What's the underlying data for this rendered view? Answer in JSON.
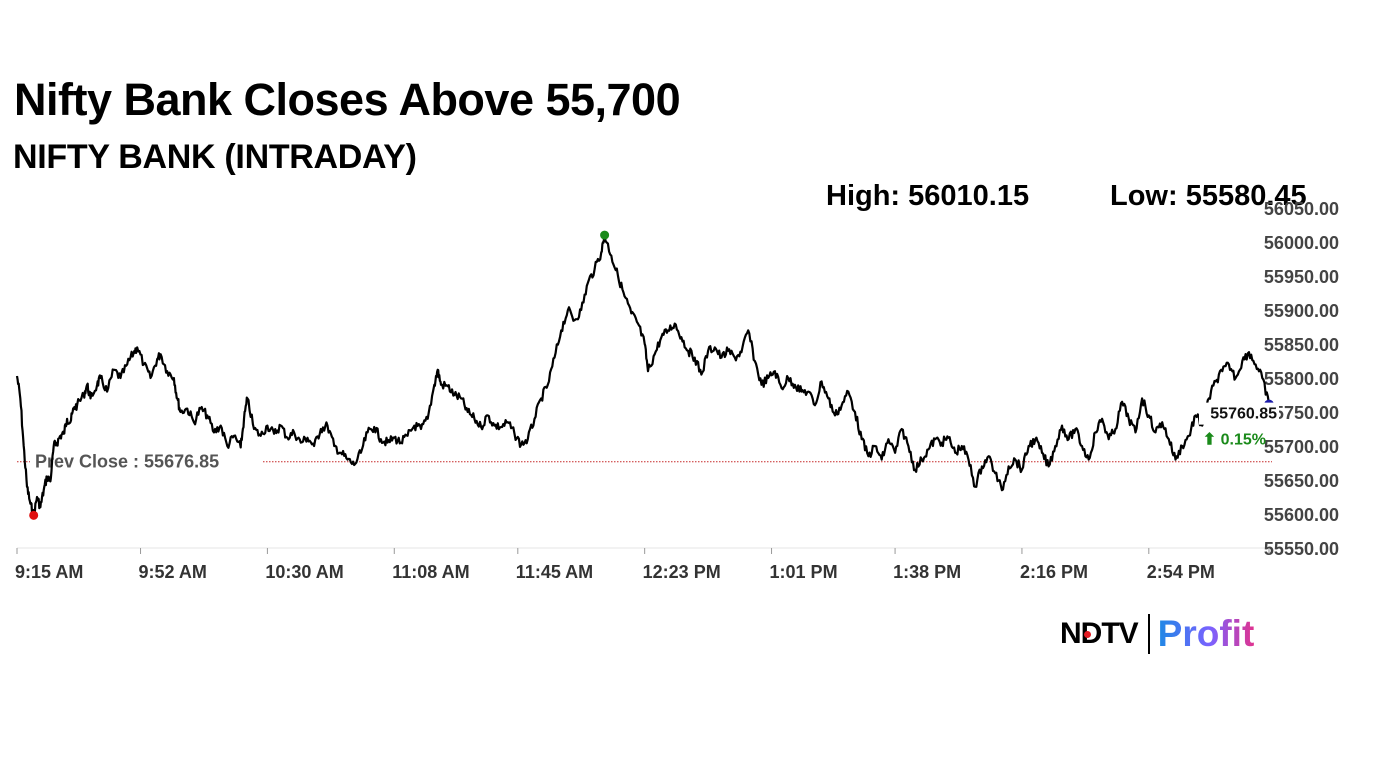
{
  "header": {
    "headline": "Nifty Bank Closes Above 55,700",
    "subtitle": "NIFTY BANK (INTRADAY)",
    "high_label": "High: 56010.15",
    "low_label": "Low: 55580.45"
  },
  "brand": {
    "ndtv": "NDTV",
    "profit": "Profit"
  },
  "chart_data": {
    "type": "line",
    "title": "NIFTY BANK (INTRADAY)",
    "xlabel": "",
    "ylabel": "",
    "x_tick_labels": [
      "9:15 AM",
      "9:52 AM",
      "10:30 AM",
      "11:08 AM",
      "11:45 AM",
      "12:23 PM",
      "1:01 PM",
      "1:38 PM",
      "2:16 PM",
      "2:54 PM"
    ],
    "y_tick_labels": [
      "56050.00",
      "56000.00",
      "55950.00",
      "55900.00",
      "55850.00",
      "55800.00",
      "55750.00",
      "55700.00",
      "55650.00",
      "55600.00",
      "55550.00"
    ],
    "ylim": [
      55550,
      56050
    ],
    "time_range": [
      "9:15 AM",
      "3:30 PM"
    ],
    "grid": false,
    "series": [
      {
        "name": "",
        "points": [
          [
            "9:15",
            55803
          ],
          [
            "9:16",
            55770
          ],
          [
            "9:17",
            55700
          ],
          [
            "9:18",
            55640
          ],
          [
            "9:19",
            55615
          ],
          [
            "9:20",
            55598
          ],
          [
            "9:21",
            55625
          ],
          [
            "9:22",
            55610
          ],
          [
            "9:23",
            55635
          ],
          [
            "9:24",
            55655
          ],
          [
            "9:25",
            55648
          ],
          [
            "9:26",
            55700
          ],
          [
            "9:27",
            55705
          ],
          [
            "9:28",
            55715
          ],
          [
            "9:29",
            55718
          ],
          [
            "9:30",
            55740
          ],
          [
            "9:31",
            55735
          ],
          [
            "9:32",
            55755
          ],
          [
            "9:33",
            55760
          ],
          [
            "9:35",
            55775
          ],
          [
            "9:36",
            55790
          ],
          [
            "9:37",
            55770
          ],
          [
            "9:39",
            55790
          ],
          [
            "9:40",
            55800
          ],
          [
            "9:42",
            55780
          ],
          [
            "9:44",
            55812
          ],
          [
            "9:46",
            55800
          ],
          [
            "9:48",
            55820
          ],
          [
            "9:50",
            55838
          ],
          [
            "9:51",
            55845
          ],
          [
            "9:53",
            55820
          ],
          [
            "9:55",
            55800
          ],
          [
            "9:57",
            55828
          ],
          [
            "9:58",
            55835
          ],
          [
            "10:00",
            55810
          ],
          [
            "10:02",
            55800
          ],
          [
            "10:03",
            55770
          ],
          [
            "10:04",
            55750
          ],
          [
            "10:06",
            55755
          ],
          [
            "10:08",
            55735
          ],
          [
            "10:10",
            55755
          ],
          [
            "10:12",
            55745
          ],
          [
            "10:14",
            55720
          ],
          [
            "10:16",
            55730
          ],
          [
            "10:18",
            55700
          ],
          [
            "10:20",
            55715
          ],
          [
            "10:22",
            55698
          ],
          [
            "10:23",
            55740
          ],
          [
            "10:24",
            55770
          ],
          [
            "10:26",
            55725
          ],
          [
            "10:28",
            55715
          ],
          [
            "10:30",
            55730
          ],
          [
            "10:32",
            55718
          ],
          [
            "10:34",
            55730
          ],
          [
            "10:36",
            55712
          ],
          [
            "10:38",
            55720
          ],
          [
            "10:40",
            55705
          ],
          [
            "10:42",
            55712
          ],
          [
            "10:44",
            55700
          ],
          [
            "10:46",
            55725
          ],
          [
            "10:48",
            55730
          ],
          [
            "10:50",
            55700
          ],
          [
            "10:52",
            55690
          ],
          [
            "10:54",
            55680
          ],
          [
            "10:56",
            55672
          ],
          [
            "10:58",
            55690
          ],
          [
            "11:00",
            55720
          ],
          [
            "11:02",
            55728
          ],
          [
            "11:04",
            55710
          ],
          [
            "11:06",
            55705
          ],
          [
            "11:08",
            55712
          ],
          [
            "11:10",
            55705
          ],
          [
            "11:12",
            55715
          ],
          [
            "11:14",
            55730
          ],
          [
            "11:16",
            55725
          ],
          [
            "11:18",
            55740
          ],
          [
            "11:20",
            55790
          ],
          [
            "11:21",
            55812
          ],
          [
            "11:22",
            55790
          ],
          [
            "11:24",
            55788
          ],
          [
            "11:26",
            55775
          ],
          [
            "11:28",
            55770
          ],
          [
            "11:30",
            55750
          ],
          [
            "11:32",
            55740
          ],
          [
            "11:34",
            55728
          ],
          [
            "11:36",
            55745
          ],
          [
            "11:38",
            55730
          ],
          [
            "11:40",
            55728
          ],
          [
            "11:42",
            55735
          ],
          [
            "11:44",
            55718
          ],
          [
            "11:46",
            55702
          ],
          [
            "11:48",
            55710
          ],
          [
            "11:50",
            55740
          ],
          [
            "11:52",
            55770
          ],
          [
            "11:54",
            55790
          ],
          [
            "11:56",
            55830
          ],
          [
            "11:58",
            55870
          ],
          [
            "12:00",
            55900
          ],
          [
            "12:02",
            55885
          ],
          [
            "12:04",
            55900
          ],
          [
            "12:06",
            55940
          ],
          [
            "12:08",
            55960
          ],
          [
            "12:10",
            55985
          ],
          [
            "12:11",
            56010
          ],
          [
            "12:13",
            55980
          ],
          [
            "12:15",
            55950
          ],
          [
            "12:17",
            55920
          ],
          [
            "12:19",
            55895
          ],
          [
            "12:21",
            55880
          ],
          [
            "12:23",
            55850
          ],
          [
            "12:24",
            55810
          ],
          [
            "12:26",
            55835
          ],
          [
            "12:28",
            55860
          ],
          [
            "12:30",
            55870
          ],
          [
            "12:32",
            55880
          ],
          [
            "12:34",
            55860
          ],
          [
            "12:36",
            55840
          ],
          [
            "12:38",
            55830
          ],
          [
            "12:40",
            55805
          ],
          [
            "12:42",
            55840
          ],
          [
            "12:44",
            55845
          ],
          [
            "12:46",
            55830
          ],
          [
            "12:48",
            55840
          ],
          [
            "12:50",
            55830
          ],
          [
            "12:52",
            55838
          ],
          [
            "12:54",
            55870
          ],
          [
            "12:56",
            55825
          ],
          [
            "12:58",
            55790
          ],
          [
            "13:00",
            55800
          ],
          [
            "13:02",
            55810
          ],
          [
            "13:04",
            55785
          ],
          [
            "13:06",
            55800
          ],
          [
            "13:08",
            55790
          ],
          [
            "13:10",
            55780
          ],
          [
            "13:12",
            55780
          ],
          [
            "13:14",
            55760
          ],
          [
            "13:16",
            55795
          ],
          [
            "13:18",
            55770
          ],
          [
            "13:20",
            55745
          ],
          [
            "13:22",
            55760
          ],
          [
            "13:24",
            55780
          ],
          [
            "13:26",
            55750
          ],
          [
            "13:28",
            55710
          ],
          [
            "13:30",
            55685
          ],
          [
            "13:32",
            55700
          ],
          [
            "13:34",
            55680
          ],
          [
            "13:36",
            55710
          ],
          [
            "13:38",
            55690
          ],
          [
            "13:40",
            55725
          ],
          [
            "13:42",
            55700
          ],
          [
            "13:44",
            55665
          ],
          [
            "13:46",
            55680
          ],
          [
            "13:48",
            55695
          ],
          [
            "13:50",
            55710
          ],
          [
            "13:52",
            55705
          ],
          [
            "13:54",
            55712
          ],
          [
            "13:56",
            55690
          ],
          [
            "13:58",
            55700
          ],
          [
            "14:00",
            55680
          ],
          [
            "14:02",
            55640
          ],
          [
            "14:04",
            55670
          ],
          [
            "14:06",
            55685
          ],
          [
            "14:08",
            55660
          ],
          [
            "14:10",
            55635
          ],
          [
            "14:12",
            55670
          ],
          [
            "14:14",
            55680
          ],
          [
            "14:16",
            55665
          ],
          [
            "14:18",
            55700
          ],
          [
            "14:20",
            55710
          ],
          [
            "14:22",
            55690
          ],
          [
            "14:24",
            55670
          ],
          [
            "14:26",
            55700
          ],
          [
            "14:28",
            55730
          ],
          [
            "14:30",
            55710
          ],
          [
            "14:32",
            55725
          ],
          [
            "14:34",
            55700
          ],
          [
            "14:36",
            55680
          ],
          [
            "14:38",
            55720
          ],
          [
            "14:40",
            55740
          ],
          [
            "14:42",
            55710
          ],
          [
            "14:44",
            55725
          ],
          [
            "14:46",
            55765
          ],
          [
            "14:48",
            55740
          ],
          [
            "14:50",
            55720
          ],
          [
            "14:52",
            55770
          ],
          [
            "14:54",
            55745
          ],
          [
            "14:56",
            55720
          ],
          [
            "14:58",
            55735
          ],
          [
            "15:00",
            55710
          ],
          [
            "15:02",
            55680
          ],
          [
            "15:04",
            55700
          ],
          [
            "15:06",
            55715
          ],
          [
            "15:08",
            55745
          ],
          [
            "15:10",
            55730
          ],
          [
            "15:12",
            55770
          ],
          [
            "15:14",
            55795
          ],
          [
            "15:16",
            55810
          ],
          [
            "15:18",
            55820
          ],
          [
            "15:20",
            55800
          ],
          [
            "15:22",
            55825
          ],
          [
            "15:24",
            55838
          ],
          [
            "15:26",
            55820
          ],
          [
            "15:28",
            55800
          ],
          [
            "15:30",
            55760.85
          ]
        ]
      }
    ],
    "prev_close": {
      "label": "Prev Close : 55676.85",
      "value": 55676.85
    },
    "high_marker": {
      "time": "12:11",
      "value": 56010.15,
      "color": "#1a8a1a"
    },
    "low_marker": {
      "time": "9:20",
      "value": 55598,
      "color": "#e01010"
    },
    "last_marker": {
      "time": "15:30",
      "value": 55760.85,
      "color": "#1a1aa8"
    },
    "last_value_label": "55760.85",
    "change_label": "⬆ 0.15%",
    "line_color": "#000000",
    "prev_close_color": "#c62828",
    "change_color": "#1a8a1a"
  }
}
